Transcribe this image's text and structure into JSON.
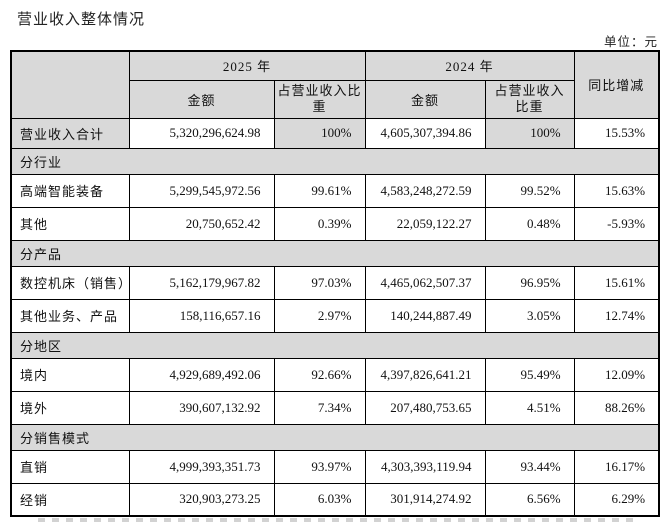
{
  "page": {
    "title": "营业收入整体情况",
    "unit_label": "单位：元"
  },
  "table": {
    "header": {
      "year_2025": "2025 年",
      "year_2024": "2024 年",
      "amount_2025": "金额",
      "pct_2025": "占营业收入比\n重",
      "amount_2024": "金额",
      "pct_2024": "占营业收入\n比重",
      "yoy": "同比增减"
    },
    "rows": [
      {
        "label": "营业收入合计",
        "a2025": "5,320,296,624.98",
        "p2025": "100%",
        "a2024": "4,605,307,394.86",
        "p2024": "100%",
        "yoy": "15.53%"
      },
      {
        "label": "分行业",
        "section": true
      },
      {
        "label": "高端智能装备",
        "a2025": "5,299,545,972.56",
        "p2025": "99.61%",
        "a2024": "4,583,248,272.59",
        "p2024": "99.52%",
        "yoy": "15.63%"
      },
      {
        "label": "其他",
        "a2025": "20,750,652.42",
        "p2025": "0.39%",
        "a2024": "22,059,122.27",
        "p2024": "0.48%",
        "yoy": "-5.93%"
      },
      {
        "label": "分产品",
        "section": true
      },
      {
        "label": "数控机床（销售）",
        "a2025": "5,162,179,967.82",
        "p2025": "97.03%",
        "a2024": "4,465,062,507.37",
        "p2024": "96.95%",
        "yoy": "15.61%"
      },
      {
        "label": "其他业务、产品",
        "a2025": "158,116,657.16",
        "p2025": "2.97%",
        "a2024": "140,244,887.49",
        "p2024": "3.05%",
        "yoy": "12.74%"
      },
      {
        "label": "分地区",
        "section": true
      },
      {
        "label": "境内",
        "a2025": "4,929,689,492.06",
        "p2025": "92.66%",
        "a2024": "4,397,826,641.21",
        "p2024": "95.49%",
        "yoy": "12.09%"
      },
      {
        "label": "境外",
        "a2025": "390,607,132.92",
        "p2025": "7.34%",
        "a2024": "207,480,753.65",
        "p2024": "4.51%",
        "yoy": "88.26%"
      },
      {
        "label": "分销售模式",
        "section": true
      },
      {
        "label": "直销",
        "a2025": "4,999,393,351.73",
        "p2025": "93.97%",
        "a2024": "4,303,393,119.94",
        "p2024": "93.44%",
        "yoy": "16.17%"
      },
      {
        "label": "经销",
        "a2025": "320,903,273.25",
        "p2025": "6.03%",
        "a2024": "301,914,274.92",
        "p2024": "6.56%",
        "yoy": "6.29%"
      }
    ]
  }
}
